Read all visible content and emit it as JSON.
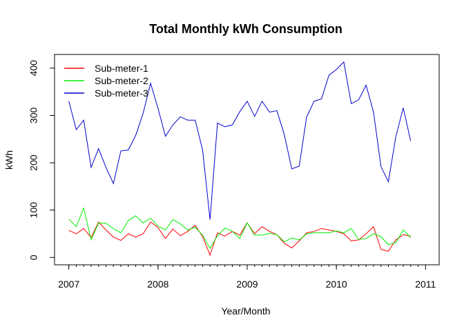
{
  "chart_data": {
    "type": "line",
    "title": "Total Monthly kWh Consumption",
    "xlabel": "Year/Month",
    "ylabel": "kWh",
    "xlim": [
      2007,
      2011
    ],
    "ylim": [
      0,
      400
    ],
    "x_ticks": [
      2007,
      2008,
      2009,
      2010,
      2011
    ],
    "y_ticks": [
      0,
      100,
      200,
      300,
      400
    ],
    "grid": false,
    "legend_position": "top-left",
    "x": [
      2007.0,
      2007.0833,
      2007.1667,
      2007.25,
      2007.3333,
      2007.4167,
      2007.5,
      2007.5833,
      2007.6667,
      2007.75,
      2007.8333,
      2007.9167,
      2008.0,
      2008.0833,
      2008.1667,
      2008.25,
      2008.3333,
      2008.4167,
      2008.5,
      2008.5833,
      2008.6667,
      2008.75,
      2008.8333,
      2008.9167,
      2009.0,
      2009.0833,
      2009.1667,
      2009.25,
      2009.3333,
      2009.4167,
      2009.5,
      2009.5833,
      2009.6667,
      2009.75,
      2009.8333,
      2009.9167,
      2010.0,
      2010.0833,
      2010.1667,
      2010.25,
      2010.3333,
      2010.4167,
      2010.5,
      2010.5833,
      2010.6667,
      2010.75,
      2010.8333
    ],
    "series": [
      {
        "name": "Sub-meter-1",
        "color": "#ff0000",
        "values": [
          57,
          50,
          61,
          42,
          75,
          58,
          43,
          36,
          50,
          43,
          50,
          75,
          63,
          40,
          60,
          46,
          55,
          68,
          44,
          5,
          52,
          45,
          55,
          47,
          73,
          50,
          65,
          55,
          48,
          30,
          20,
          35,
          52,
          55,
          61,
          58,
          55,
          50,
          35,
          37,
          50,
          65,
          17,
          13,
          37,
          48,
          45
        ]
      },
      {
        "name": "Sub-meter-2",
        "color": "#00ee00",
        "values": [
          81,
          65,
          104,
          37,
          73,
          72,
          61,
          52,
          78,
          88,
          73,
          83,
          66,
          58,
          80,
          71,
          58,
          64,
          47,
          19,
          46,
          62,
          55,
          40,
          73,
          47,
          47,
          51,
          48,
          33,
          41,
          37,
          50,
          52,
          52,
          52,
          56,
          52,
          61,
          38,
          40,
          50,
          44,
          27,
          31,
          58,
          42
        ]
      },
      {
        "name": "Sub-meter-3",
        "color": "#0000cc",
        "values": [
          330,
          270,
          290,
          190,
          230,
          190,
          156,
          225,
          227,
          258,
          305,
          368,
          315,
          256,
          280,
          297,
          290,
          290,
          227,
          80,
          284,
          276,
          280,
          308,
          330,
          298,
          330,
          307,
          310,
          259,
          187,
          193,
          297,
          330,
          335,
          385,
          397,
          413,
          325,
          333,
          364,
          307,
          192,
          160,
          255,
          316,
          246
        ]
      }
    ]
  }
}
